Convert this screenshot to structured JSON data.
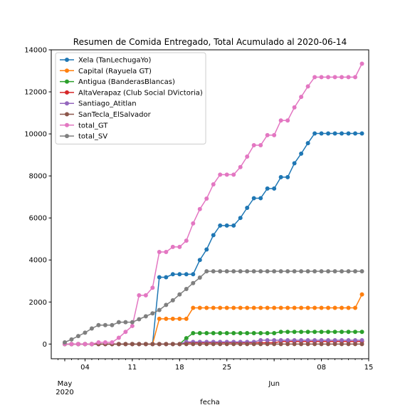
{
  "chart_data": {
    "type": "line",
    "title": "Resumen de Comida Entregado, Total Acumulado al 2020-06-14",
    "xlabel": "fecha",
    "ylabel": "",
    "x_start": "2020-05-01",
    "x": [
      "2020-05-01",
      "2020-05-02",
      "2020-05-03",
      "2020-05-04",
      "2020-05-05",
      "2020-05-06",
      "2020-05-07",
      "2020-05-08",
      "2020-05-09",
      "2020-05-10",
      "2020-05-11",
      "2020-05-12",
      "2020-05-13",
      "2020-05-14",
      "2020-05-15",
      "2020-05-16",
      "2020-05-17",
      "2020-05-18",
      "2020-05-19",
      "2020-05-20",
      "2020-05-21",
      "2020-05-22",
      "2020-05-23",
      "2020-05-24",
      "2020-05-25",
      "2020-05-26",
      "2020-05-27",
      "2020-05-28",
      "2020-05-29",
      "2020-05-30",
      "2020-05-31",
      "2020-06-01",
      "2020-06-02",
      "2020-06-03",
      "2020-06-04",
      "2020-06-05",
      "2020-06-06",
      "2020-06-07",
      "2020-06-08",
      "2020-06-09",
      "2020-06-10",
      "2020-06-11",
      "2020-06-12",
      "2020-06-13",
      "2020-06-14"
    ],
    "xlim": [
      "2020-04-29",
      "2020-06-15"
    ],
    "ylim": [
      -700,
      14000
    ],
    "yticks": [
      0,
      2000,
      4000,
      6000,
      8000,
      10000,
      12000,
      14000
    ],
    "xticks": [
      {
        "date": "2020-05-04",
        "label": "04"
      },
      {
        "date": "2020-05-11",
        "label": "11"
      },
      {
        "date": "2020-05-18",
        "label": "18"
      },
      {
        "date": "2020-05-25",
        "label": "25"
      },
      {
        "date": "2020-06-08",
        "label": "08"
      },
      {
        "date": "2020-06-15",
        "label": "15"
      }
    ],
    "month_labels": [
      {
        "date": "2020-05-01",
        "label": "May",
        "year": "2020"
      },
      {
        "date": "2020-06-01",
        "label": "Jun",
        "year": ""
      }
    ],
    "legend_position": "upper-left",
    "series": [
      {
        "name": "Xela (TanLechugaYo)",
        "color": "#1f77b4",
        "values": [
          0,
          0,
          0,
          0,
          0,
          0,
          0,
          0,
          0,
          0,
          0,
          0,
          0,
          0,
          3180,
          3180,
          3320,
          3320,
          3320,
          3320,
          4000,
          4500,
          5180,
          5640,
          5640,
          5640,
          6000,
          6480,
          6940,
          6940,
          7400,
          7400,
          7940,
          7940,
          8600,
          9060,
          9560,
          10020,
          10020,
          10020,
          10020,
          10020,
          10020,
          10020,
          10020
        ]
      },
      {
        "name": "Capital (Rayuela GT)",
        "color": "#ff7f0e",
        "values": [
          0,
          0,
          0,
          0,
          0,
          0,
          0,
          0,
          0,
          0,
          0,
          0,
          0,
          0,
          1200,
          1200,
          1200,
          1200,
          1200,
          1720,
          1720,
          1720,
          1720,
          1720,
          1720,
          1720,
          1720,
          1720,
          1720,
          1720,
          1720,
          1720,
          1720,
          1720,
          1720,
          1720,
          1720,
          1720,
          1720,
          1720,
          1720,
          1720,
          1720,
          1720,
          2360
        ]
      },
      {
        "name": "Antigua (BanderasBlancas)",
        "color": "#2ca02c",
        "values": [
          0,
          0,
          0,
          0,
          0,
          0,
          0,
          0,
          0,
          0,
          0,
          0,
          0,
          0,
          0,
          0,
          0,
          0,
          280,
          520,
          520,
          520,
          520,
          520,
          520,
          520,
          520,
          520,
          520,
          520,
          520,
          520,
          580,
          580,
          580,
          580,
          580,
          580,
          580,
          580,
          580,
          580,
          580,
          580,
          580
        ]
      },
      {
        "name": "AltaVerapaz (Club Social DVictoria)",
        "color": "#d62728",
        "values": [
          0,
          0,
          0,
          0,
          0,
          0,
          0,
          0,
          0,
          0,
          0,
          0,
          0,
          0,
          0,
          0,
          0,
          0,
          60,
          60,
          60,
          60,
          60,
          60,
          60,
          60,
          60,
          60,
          60,
          60,
          60,
          60,
          120,
          120,
          120,
          120,
          120,
          120,
          120,
          120,
          120,
          120,
          120,
          120,
          120
        ]
      },
      {
        "name": "Santiago_Atitlan",
        "color": "#9467bd",
        "values": [
          0,
          0,
          0,
          0,
          0,
          0,
          0,
          0,
          0,
          0,
          0,
          0,
          0,
          0,
          0,
          0,
          0,
          0,
          100,
          100,
          100,
          100,
          100,
          100,
          100,
          100,
          100,
          100,
          100,
          180,
          180,
          180,
          180,
          180,
          180,
          180,
          180,
          180,
          180,
          180,
          180,
          180,
          180,
          180,
          180
        ]
      },
      {
        "name": "SanTecla_ElSalvador",
        "color": "#8c564b",
        "values": [
          0,
          0,
          0,
          0,
          0,
          0,
          0,
          0,
          0,
          0,
          0,
          0,
          0,
          0,
          0,
          0,
          0,
          0,
          0,
          0,
          0,
          0,
          0,
          0,
          0,
          0,
          0,
          0,
          0,
          0,
          0,
          0,
          0,
          0,
          0,
          0,
          0,
          0,
          0,
          0,
          0,
          0,
          0,
          0,
          0
        ]
      },
      {
        "name": "total_GT",
        "color": "#e377c2",
        "values": [
          0,
          0,
          0,
          0,
          0,
          80,
          80,
          80,
          300,
          580,
          860,
          2320,
          2320,
          2680,
          4380,
          4380,
          4620,
          4620,
          4920,
          5740,
          6420,
          6920,
          7600,
          8060,
          8060,
          8060,
          8420,
          8920,
          9460,
          9460,
          9940,
          9940,
          10640,
          10640,
          11260,
          11760,
          12260,
          12700,
          12700,
          12700,
          12700,
          12700,
          12700,
          12700,
          13340
        ]
      },
      {
        "name": "total_SV",
        "color": "#7f7f7f",
        "values": [
          80,
          220,
          380,
          540,
          740,
          900,
          900,
          900,
          1040,
          1040,
          1040,
          1180,
          1320,
          1460,
          1620,
          1860,
          2080,
          2360,
          2620,
          2900,
          3160,
          3460,
          3460,
          3460,
          3460,
          3460,
          3460,
          3460,
          3460,
          3460,
          3460,
          3460,
          3460,
          3460,
          3460,
          3460,
          3460,
          3460,
          3460,
          3460,
          3460,
          3460,
          3460,
          3460,
          3460
        ]
      }
    ]
  }
}
